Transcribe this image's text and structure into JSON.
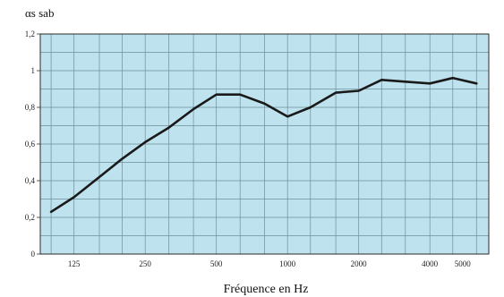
{
  "chart_data": {
    "type": "line",
    "ylabel": "αs sab",
    "xlabel": "Fréquence en Hz",
    "x_tick_labels": [
      "125",
      "250",
      "500",
      "1000",
      "2000",
      "4000",
      "5000"
    ],
    "y_tick_labels": [
      "0",
      "0,2",
      "0,4",
      "0,6",
      "0,8",
      "1",
      "1,2"
    ],
    "ylim": [
      0,
      1.2
    ],
    "grid": true,
    "x_scale": "log",
    "colors": {
      "plot_bg": "#bfe3ee",
      "grid": "#6f8e99",
      "line": "#1a1a1a"
    },
    "series": [
      {
        "x": [
          100,
          125,
          160,
          200,
          250,
          315,
          400,
          500,
          630,
          800,
          1000,
          1250,
          1600,
          2000,
          2500,
          3150,
          4000,
          5000,
          6300
        ],
        "values": [
          0.23,
          0.31,
          0.42,
          0.52,
          0.61,
          0.69,
          0.79,
          0.87,
          0.87,
          0.82,
          0.75,
          0.8,
          0.88,
          0.89,
          0.95,
          0.94,
          0.93,
          0.96,
          0.93
        ]
      }
    ]
  }
}
